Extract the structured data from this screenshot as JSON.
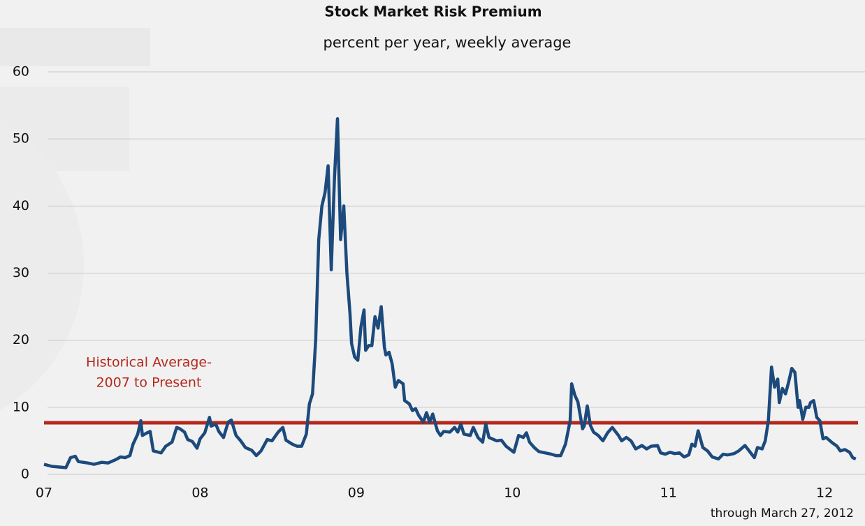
{
  "chart_data": {
    "type": "line",
    "title": "Stock Market Risk Premium",
    "subtitle": "percent per year, weekly average",
    "note": "through March 27, 2012",
    "xlim": [
      2007,
      2012.25
    ],
    "xticks": [
      {
        "value": 2007,
        "label": "07"
      },
      {
        "value": 2008,
        "label": "08"
      },
      {
        "value": 2009,
        "label": "09"
      },
      {
        "value": 2010,
        "label": "10"
      },
      {
        "value": 2011,
        "label": "11"
      },
      {
        "value": 2012,
        "label": "12"
      }
    ],
    "ylim": [
      0,
      60
    ],
    "yticks": [
      0,
      10,
      20,
      30,
      40,
      50,
      60
    ],
    "grid": true,
    "reference_line": {
      "value": 7.7,
      "color": "#b5281c",
      "label_lines": [
        "Historical Average-",
        "2007 to Present"
      ]
    },
    "x": [
      2007.0,
      2007.05,
      2007.14,
      2007.17,
      2007.2,
      2007.22,
      2007.28,
      2007.32,
      2007.37,
      2007.41,
      2007.46,
      2007.49,
      2007.52,
      2007.55,
      2007.57,
      2007.6,
      2007.62,
      2007.63,
      2007.66,
      2007.68,
      2007.7,
      2007.75,
      2007.78,
      2007.82,
      2007.85,
      2007.87,
      2007.9,
      2007.92,
      2007.95,
      2007.98,
      2008.0,
      2008.03,
      2008.06,
      2008.07,
      2008.1,
      2008.12,
      2008.15,
      2008.18,
      2008.2,
      2008.23,
      2008.26,
      2008.29,
      2008.33,
      2008.36,
      2008.39,
      2008.43,
      2008.46,
      2008.5,
      2008.53,
      2008.55,
      2008.59,
      2008.62,
      2008.65,
      2008.68,
      2008.7,
      2008.72,
      2008.74,
      2008.76,
      2008.78,
      2008.8,
      2008.82,
      2008.84,
      2008.86,
      2008.88,
      2008.9,
      2008.92,
      2008.94,
      2008.96,
      2008.97,
      2008.99,
      2009.01,
      2009.03,
      2009.05,
      2009.06,
      2009.08,
      2009.1,
      2009.12,
      2009.14,
      2009.16,
      2009.18,
      2009.19,
      2009.21,
      2009.23,
      2009.25,
      2009.27,
      2009.3,
      2009.31,
      2009.34,
      2009.36,
      2009.38,
      2009.4,
      2009.43,
      2009.45,
      2009.47,
      2009.49,
      2009.52,
      2009.54,
      2009.56,
      2009.6,
      2009.63,
      2009.65,
      2009.67,
      2009.69,
      2009.73,
      2009.75,
      2009.78,
      2009.81,
      2009.83,
      2009.85,
      2009.9,
      2009.93,
      2009.96,
      2010.01,
      2010.04,
      2010.07,
      2010.09,
      2010.11,
      2010.14,
      2010.17,
      2010.21,
      2010.25,
      2010.28,
      2010.31,
      2010.34,
      2010.37,
      2010.38,
      2010.4,
      2010.42,
      2010.45,
      2010.46,
      2010.48,
      2010.5,
      2010.52,
      2010.55,
      2010.58,
      2010.61,
      2010.64,
      2010.68,
      2010.7,
      2010.73,
      2010.76,
      2010.79,
      2010.83,
      2010.86,
      2010.89,
      2010.93,
      2010.95,
      2010.98,
      2011.01,
      2011.04,
      2011.07,
      2011.1,
      2011.13,
      2011.15,
      2011.17,
      2011.19,
      2011.22,
      2011.25,
      2011.28,
      2011.32,
      2011.35,
      2011.38,
      2011.42,
      2011.45,
      2011.49,
      2011.51,
      2011.55,
      2011.57,
      2011.6,
      2011.62,
      2011.64,
      2011.66,
      2011.68,
      2011.7,
      2011.71,
      2011.73,
      2011.75,
      2011.77,
      2011.79,
      2011.81,
      2011.83,
      2011.84,
      2011.86,
      2011.88,
      2011.9,
      2011.91,
      2011.93,
      2011.95,
      2011.97,
      2011.99,
      2012.01,
      2012.05,
      2012.08,
      2012.1,
      2012.13,
      2012.16,
      2012.18,
      2012.2
    ],
    "series": [
      {
        "name": "Stock Market Risk Premium",
        "color": "#1c4a7c",
        "values": [
          1.5,
          1.2,
          1.0,
          2.5,
          2.7,
          1.9,
          1.7,
          1.5,
          1.8,
          1.7,
          2.2,
          2.6,
          2.5,
          2.8,
          4.5,
          6,
          8,
          5.8,
          6.2,
          6.4,
          3.5,
          3.2,
          4.2,
          4.8,
          7,
          6.8,
          6.3,
          5.2,
          4.9,
          3.9,
          5.3,
          6.2,
          8.5,
          7.2,
          7.5,
          6.4,
          5.5,
          7.8,
          8.1,
          5.8,
          5,
          4,
          3.6,
          2.8,
          3.5,
          5.2,
          5,
          6.3,
          7,
          5.1,
          4.5,
          4.2,
          4.2,
          6,
          10.5,
          12,
          20,
          35,
          40,
          42,
          46,
          30.5,
          44,
          53,
          35,
          40,
          30,
          24,
          19.5,
          17.5,
          17,
          22,
          24.5,
          18.5,
          19.2,
          19.2,
          23.5,
          21.8,
          25,
          19,
          17.8,
          18.2,
          16.5,
          13,
          14,
          13.5,
          11,
          10.5,
          9.5,
          9.8,
          8.8,
          7.8,
          9.2,
          7.8,
          9,
          6.5,
          5.8,
          6.4,
          6.3,
          7,
          6.3,
          7.5,
          6,
          5.8,
          7,
          5.5,
          4.8,
          7.5,
          5.5,
          5,
          5.1,
          4.2,
          3.3,
          5.8,
          5.5,
          6.2,
          4.8,
          4,
          3.4,
          3.2,
          3,
          2.8,
          2.8,
          4.5,
          8,
          13.5,
          11.8,
          10.8,
          6.8,
          7.2,
          10.2,
          7.3,
          6.3,
          5.8,
          5,
          6.2,
          7,
          5.8,
          5,
          5.5,
          5,
          3.8,
          4.3,
          3.8,
          4.2,
          4.3,
          3.2,
          3,
          3.3,
          3.1,
          3.2,
          2.6,
          2.9,
          4.5,
          4.2,
          6.5,
          4,
          3.5,
          2.6,
          2.3,
          3,
          2.9,
          3.1,
          3.5,
          4.3,
          3.7,
          2.5,
          4,
          3.8,
          5,
          8,
          16,
          13,
          14.2,
          10.7,
          12.8,
          12,
          13.8,
          15.8,
          15.2,
          10,
          11,
          8.2,
          10,
          10,
          10.7,
          11,
          8.5,
          8,
          5.3,
          5.5,
          4.7,
          4.2,
          3.5,
          3.7,
          3.3,
          2.5,
          2.3
        ]
      }
    ]
  }
}
